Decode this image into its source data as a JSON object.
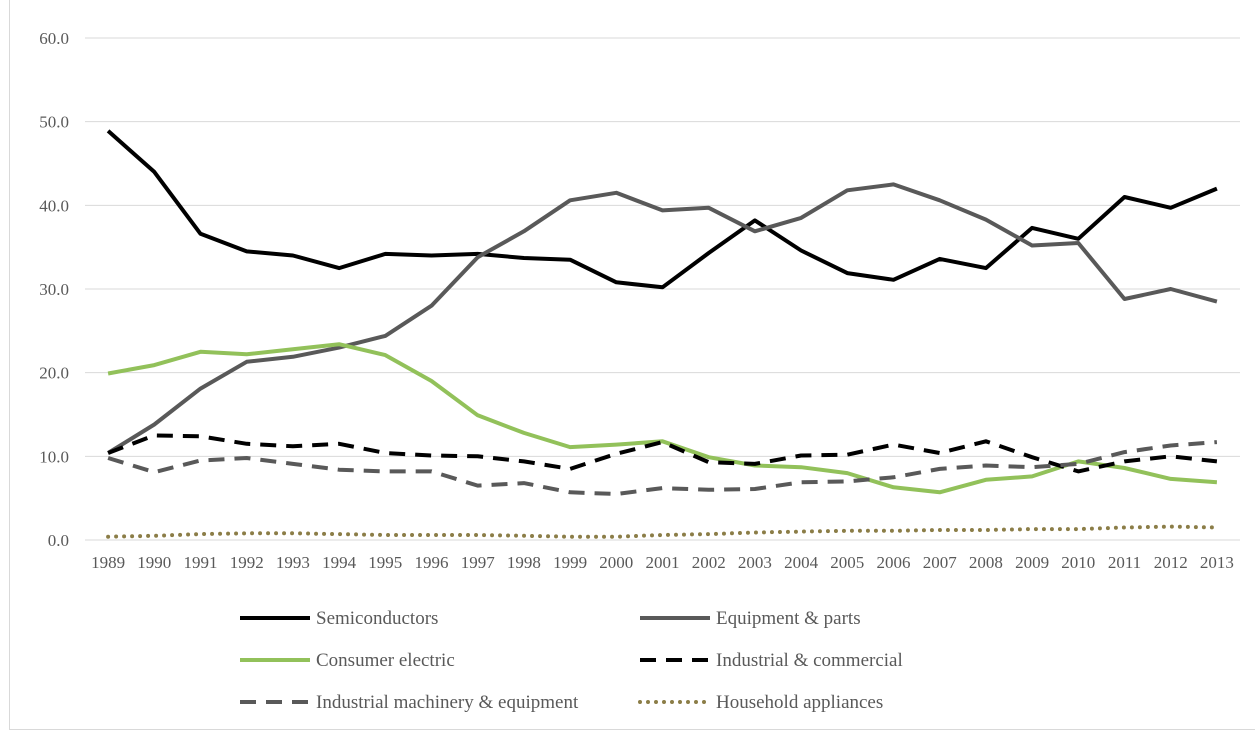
{
  "chart_data": {
    "type": "line",
    "title": "",
    "xlabel": "",
    "ylabel": "",
    "ylim": [
      0,
      60
    ],
    "yticks": [
      "0.0",
      "10.0",
      "20.0",
      "30.0",
      "40.0",
      "50.0",
      "60.0"
    ],
    "grid": true,
    "legend_position": "bottom",
    "x": [
      "1989",
      "1990",
      "1991",
      "1992",
      "1993",
      "1994",
      "1995",
      "1996",
      "1997",
      "1998",
      "1999",
      "2000",
      "2001",
      "2002",
      "2003",
      "2004",
      "2005",
      "2006",
      "2007",
      "2008",
      "2009",
      "2010",
      "2011",
      "2012",
      "2013"
    ],
    "series": [
      {
        "name": "Semiconductors",
        "color": "#000000",
        "style": "solid",
        "values": [
          48.9,
          44.0,
          36.6,
          34.5,
          34.0,
          32.5,
          34.2,
          34.0,
          34.2,
          33.7,
          33.5,
          30.8,
          30.2,
          34.3,
          38.2,
          34.6,
          31.9,
          31.1,
          33.6,
          32.5,
          37.3,
          36.0,
          41.0,
          39.7,
          42.0
        ]
      },
      {
        "name": "Equipment & parts",
        "color": "#595959",
        "style": "solid",
        "values": [
          10.4,
          13.8,
          18.1,
          21.3,
          21.9,
          23.0,
          24.4,
          28.0,
          33.8,
          36.9,
          40.6,
          41.5,
          39.4,
          39.7,
          36.9,
          38.5,
          41.8,
          42.5,
          40.6,
          38.3,
          35.2,
          35.5,
          28.8,
          30.0,
          28.5
        ]
      },
      {
        "name": "Consumer electric",
        "color": "#92c15a",
        "style": "solid",
        "values": [
          19.9,
          20.9,
          22.5,
          22.2,
          22.8,
          23.4,
          22.1,
          19.0,
          14.9,
          12.8,
          11.1,
          11.4,
          11.8,
          9.9,
          8.9,
          8.7,
          8.0,
          6.3,
          5.7,
          7.2,
          7.6,
          9.4,
          8.6,
          7.3,
          6.9
        ]
      },
      {
        "name": "Industrial & commercial",
        "color": "#000000",
        "style": "dash",
        "values": [
          10.4,
          12.5,
          12.4,
          11.5,
          11.2,
          11.5,
          10.4,
          10.1,
          10.0,
          9.4,
          8.5,
          10.3,
          11.7,
          9.3,
          9.1,
          10.1,
          10.2,
          11.4,
          10.4,
          11.8,
          9.9,
          8.2,
          9.4,
          10.0,
          9.4
        ]
      },
      {
        "name": "Industrial machinery & equipment",
        "color": "#595959",
        "style": "dash",
        "values": [
          9.8,
          8.1,
          9.5,
          9.8,
          9.1,
          8.4,
          8.2,
          8.2,
          6.5,
          6.8,
          5.7,
          5.5,
          6.2,
          6.0,
          6.1,
          6.9,
          7.0,
          7.5,
          8.5,
          8.9,
          8.7,
          9.1,
          10.5,
          11.3,
          11.7
        ]
      },
      {
        "name": "Household appliances",
        "color": "#8b7d47",
        "style": "dot",
        "values": [
          0.4,
          0.5,
          0.7,
          0.8,
          0.8,
          0.7,
          0.6,
          0.6,
          0.6,
          0.5,
          0.4,
          0.4,
          0.6,
          0.7,
          0.9,
          1.0,
          1.1,
          1.1,
          1.2,
          1.2,
          1.3,
          1.3,
          1.5,
          1.6,
          1.5
        ]
      }
    ]
  }
}
